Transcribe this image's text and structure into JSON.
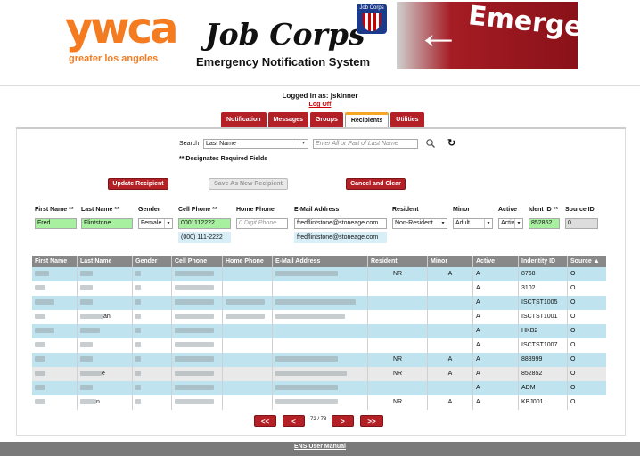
{
  "banner": {
    "ywca": "ywca",
    "region": "greater los angeles",
    "job_corps": "Job Corps",
    "system": "Emergency Notification System",
    "logo_text": "Job Corps",
    "emergency": "Emergency"
  },
  "session": {
    "logged_in": "Logged in as: jskinner",
    "logoff": "Log Off"
  },
  "tabs": [
    {
      "label": "Notification"
    },
    {
      "label": "Messages"
    },
    {
      "label": "Groups"
    },
    {
      "label": "Recipients"
    },
    {
      "label": "Utilities"
    }
  ],
  "search": {
    "label": "Search",
    "field": "Last Name",
    "placeholder": "Enter All or Part of Last Name",
    "required_note": "** Designates Required Fields"
  },
  "buttons": {
    "update": "Update Recipient",
    "save_new": "Save As New Recipient",
    "cancel": "Cancel and Clear"
  },
  "form": {
    "labels": {
      "first": "First Name **",
      "last": "Last Name **",
      "gender": "Gender",
      "cell": "Cell Phone **",
      "home": "Home Phone",
      "email": "E-Mail Address",
      "resident": "Resident",
      "minor": "Minor",
      "active": "Active",
      "ident": "Ident ID **",
      "source": "Source ID"
    },
    "values": {
      "first": "Fred",
      "last": "Flintstone",
      "gender": "Female",
      "cell": "0001112222",
      "home_placeholder": "0 Digit Phone",
      "email": "fredflintstone@stoneage.com",
      "resident": "Non-Resident",
      "minor": "Adult",
      "active": "Activ",
      "ident": "852852",
      "source": "0",
      "cell_formatted": "(000) 111-2222",
      "email_confirm": "fredflintstone@stoneage.com"
    }
  },
  "table": {
    "headers": [
      "First Name",
      "Last Name",
      "Gender",
      "Cell Phone",
      "Home Phone",
      "E-Mail Address",
      "Resident",
      "Minor",
      "Active",
      "Indentity ID",
      "Source"
    ],
    "rows": [
      {
        "resident": "NR",
        "minor": "A",
        "active": "A",
        "ident": "8768",
        "source": "O"
      },
      {
        "resident": "",
        "minor": "",
        "active": "A",
        "ident": "3102",
        "source": "O"
      },
      {
        "resident": "",
        "minor": "",
        "active": "A",
        "ident": "ISCTST1005",
        "source": "O"
      },
      {
        "resident": "",
        "minor": "",
        "active": "A",
        "ident": "ISCTST1001",
        "source": "O",
        "last_suffix": "an"
      },
      {
        "resident": "",
        "minor": "",
        "active": "A",
        "ident": "HKB2",
        "source": "O"
      },
      {
        "resident": "",
        "minor": "",
        "active": "A",
        "ident": "ISCTST1007",
        "source": "O"
      },
      {
        "resident": "NR",
        "minor": "A",
        "active": "A",
        "ident": "888999",
        "source": "O"
      },
      {
        "resident": "NR",
        "minor": "A",
        "active": "A",
        "ident": "852852",
        "source": "O",
        "last_suffix": "e"
      },
      {
        "resident": "",
        "minor": "",
        "active": "A",
        "ident": "ADM",
        "source": "O"
      },
      {
        "resident": "NR",
        "minor": "A",
        "active": "A",
        "ident": "KBJ001",
        "source": "O",
        "last_suffix": "n"
      }
    ]
  },
  "pager": {
    "first": "<<",
    "prev": "<",
    "indicator": "72 / 78",
    "next": ">",
    "last": ">>"
  },
  "footer": {
    "manual": "ENS User Manual"
  },
  "colors": {
    "brand_red": "#b32025",
    "orange": "#f47b20",
    "row_blue": "#bfe4f0",
    "required_green": "#a7f0a0"
  }
}
